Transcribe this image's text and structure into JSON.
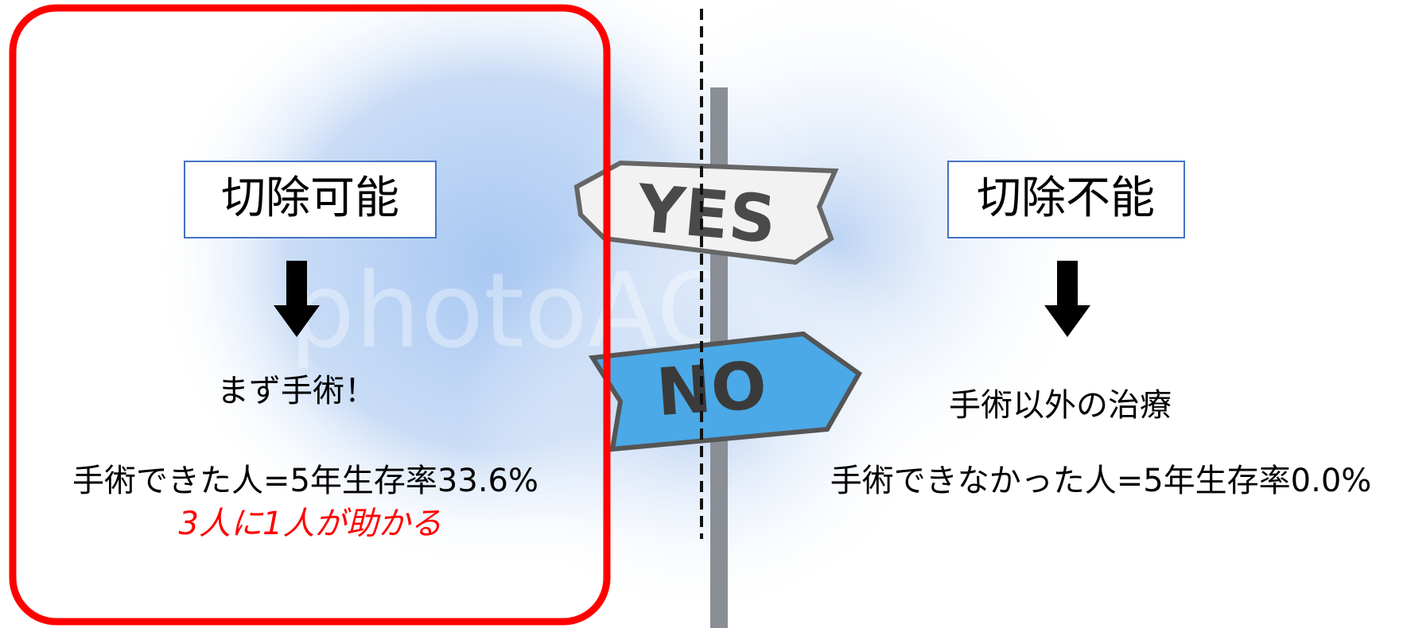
{
  "left": {
    "title": "切除可能",
    "step": "まず手術！",
    "result": "手術できた人=5年生存率33.6%",
    "note": "3人に1人が助かる"
  },
  "right": {
    "title": "切除不能",
    "step": "手術以外の治療",
    "result": "手術できなかった人=5年生存率0.0%"
  },
  "sign": {
    "yes": "YES",
    "no": "NO",
    "watermark": "photoAC"
  }
}
